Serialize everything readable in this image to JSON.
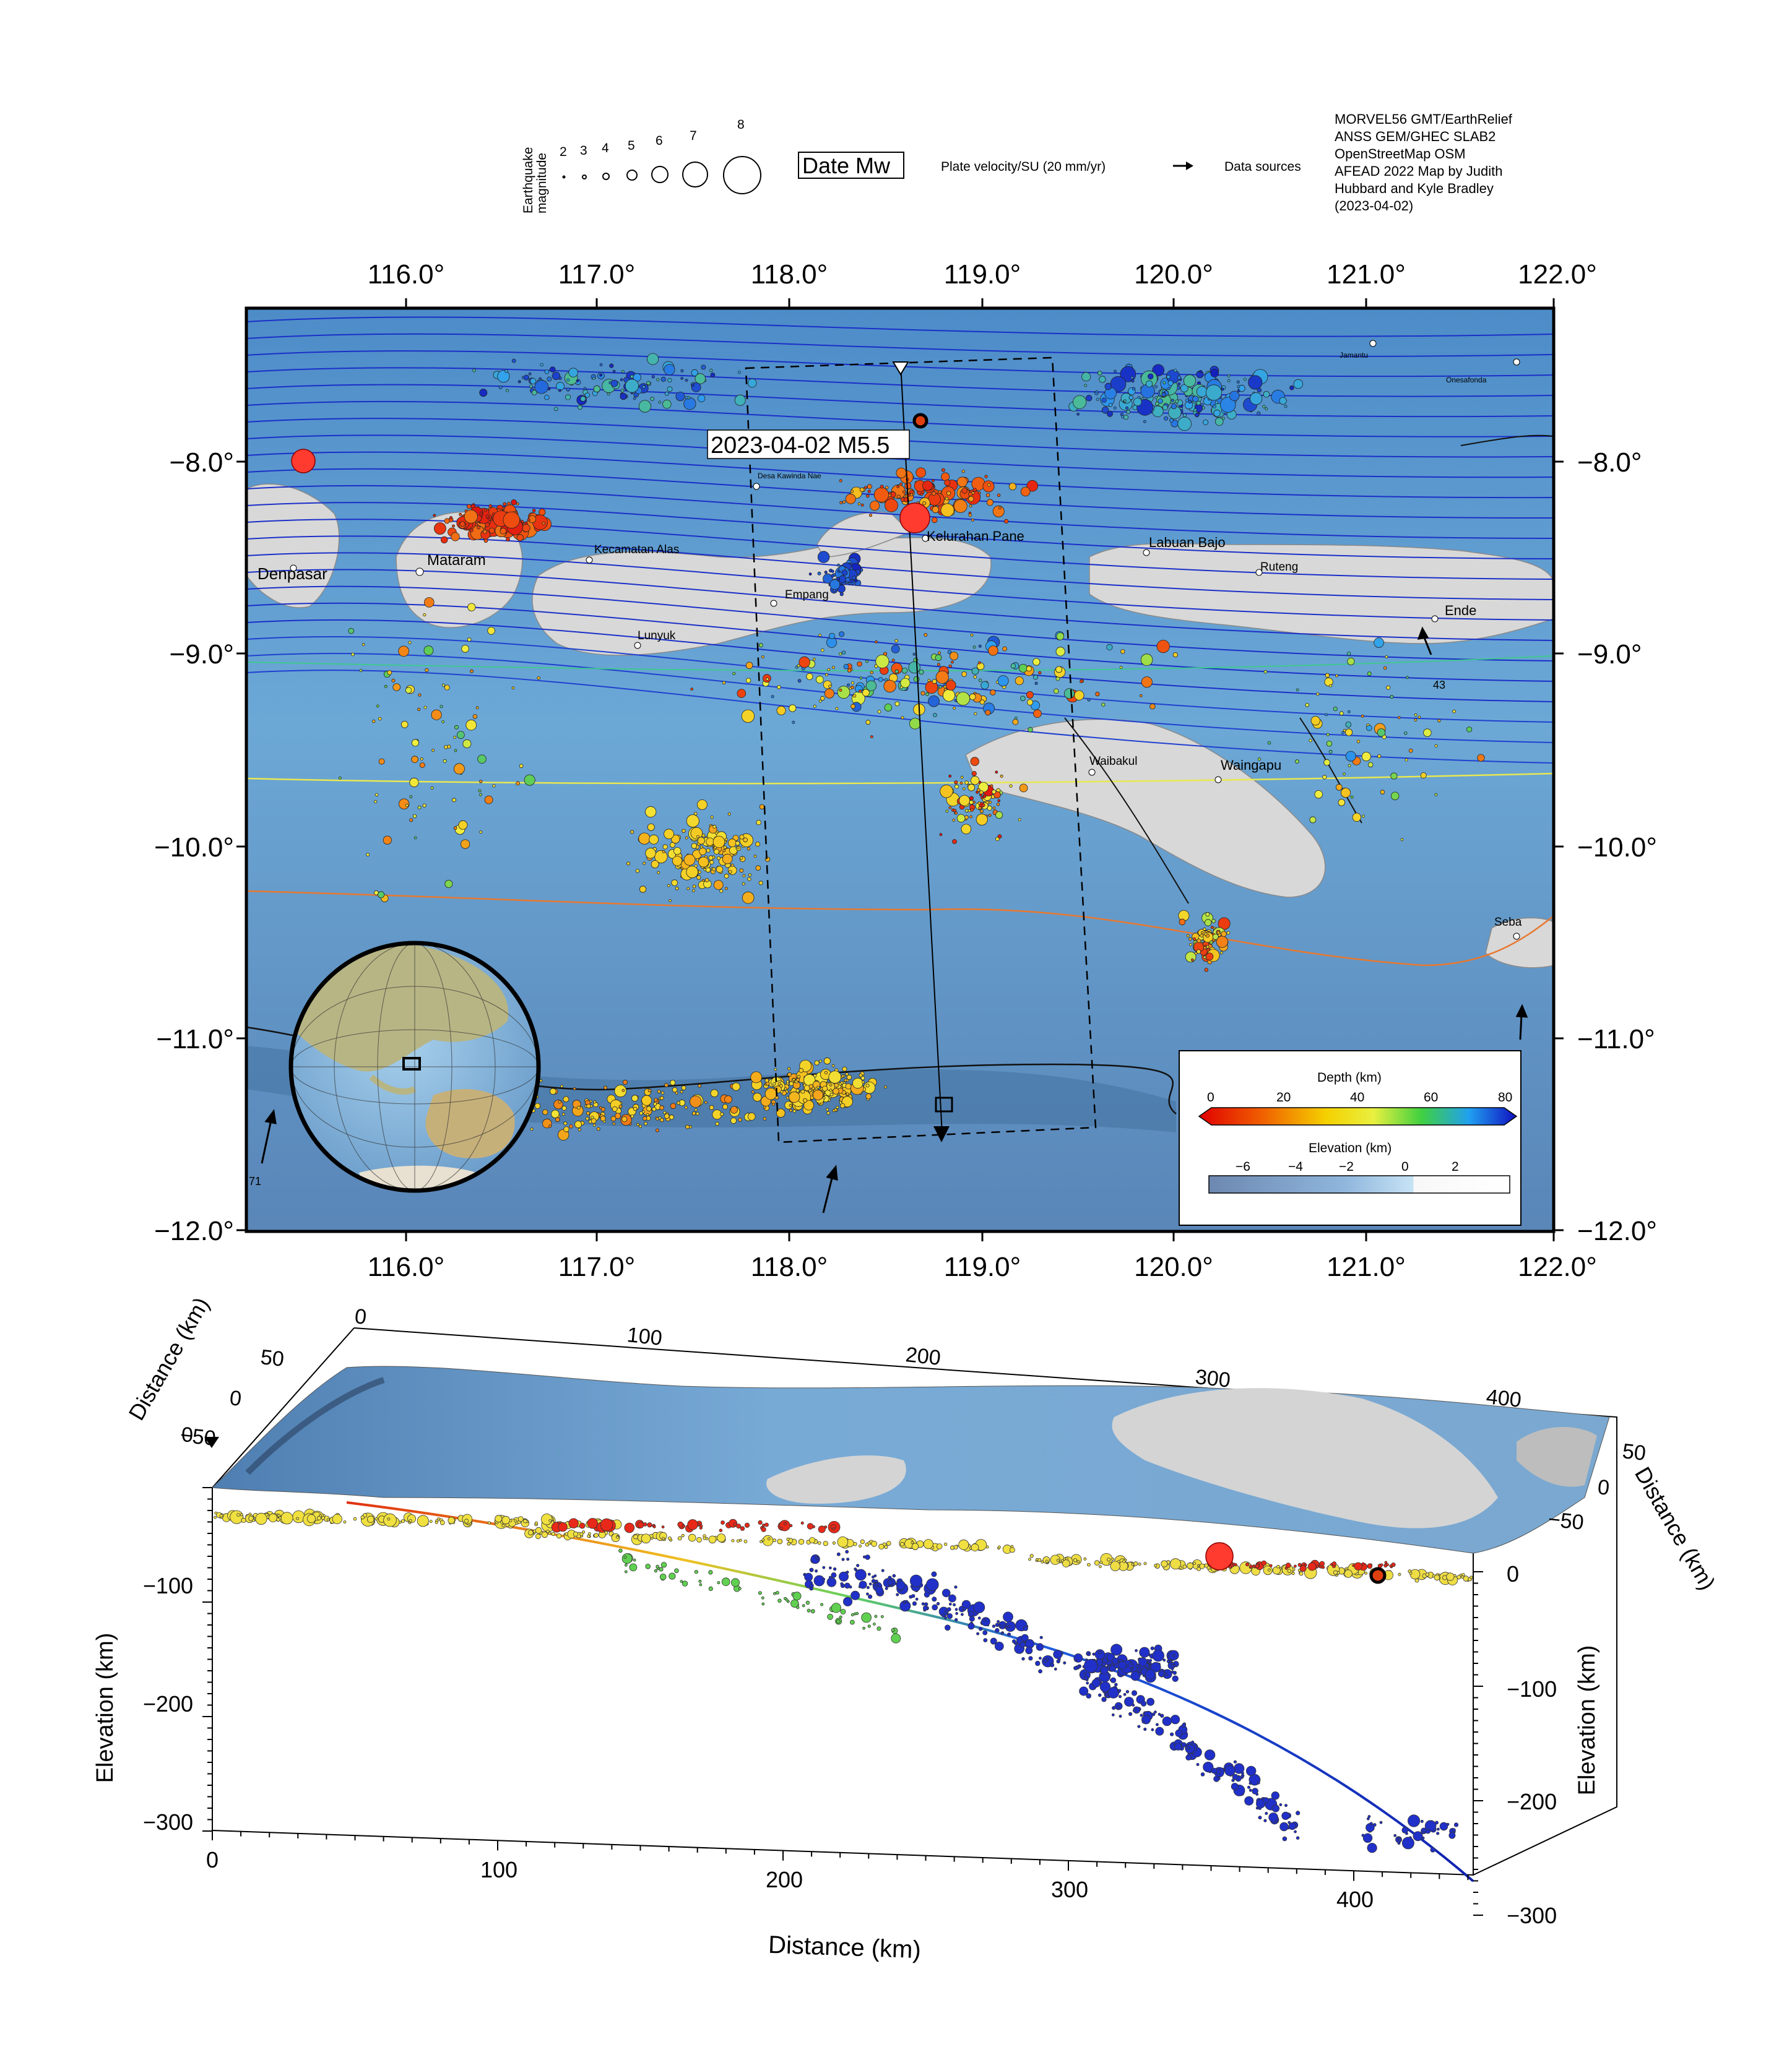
{
  "legend": {
    "magnitude_title": [
      "Earthquake",
      "magnitude"
    ],
    "magnitudes": [
      "2",
      "3",
      "4",
      "5",
      "6",
      "7",
      "8"
    ],
    "date_box": "Date Mw",
    "plate_velocity": "Plate velocity/SU (20 mm/yr)",
    "data_sources_label": "Data sources",
    "sources": [
      "MORVEL56 GMT/EarthRelief",
      "ANSS GEM/GHEC SLAB2",
      "OpenStreetMap OSM",
      "AFEAD 2022 Map by Judith",
      "Hubbard and Kyle Bradley",
      "(2023-04-02)"
    ]
  },
  "map": {
    "lon_ticks": [
      "116.0°",
      "117.0°",
      "118.0°",
      "119.0°",
      "120.0°",
      "121.0°",
      "122.0°"
    ],
    "lat_ticks": [
      "−8.0°",
      "−9.0°",
      "−10.0°",
      "−11.0°",
      "−12.0°"
    ],
    "event_label": "2023-04-02 M5.5",
    "cities": [
      "Denpasar",
      "Mataram",
      "Kecamatan Alas",
      "Lunyuk",
      "Empang",
      "Kelurahan Pane",
      "Labuan Bajo",
      "Ruteng",
      "Ende",
      "Waibakul",
      "Waingapu",
      "Seba",
      "Desa Kawinda Nae",
      "Jamantu",
      "Onesafonda"
    ],
    "velocity_labels": [
      "43",
      "71"
    ],
    "colors": {
      "ocean": "#5f9ccc",
      "land": "#d9d9d9",
      "trench": "#1a1a1a",
      "slab_deep": "#1428b4",
      "slab_shallow": "#e8601c"
    }
  },
  "depth_scale": {
    "title": "Depth (km)",
    "ticks": [
      "0",
      "20",
      "40",
      "60",
      "80"
    ],
    "colors": [
      "#e00000",
      "#f06000",
      "#f5d000",
      "#f0f040",
      "#40d040",
      "#20a0f0",
      "#1010c0"
    ]
  },
  "elevation_scale": {
    "title": "Elevation (km)",
    "ticks": [
      "−6",
      "−4",
      "−2",
      "0",
      "2"
    ]
  },
  "section": {
    "top_distance_ticks": [
      "0",
      "100",
      "200",
      "300",
      "400"
    ],
    "side_distance_ticks_left": [
      "50",
      "0",
      "−50"
    ],
    "side_distance_ticks_right": [
      "50",
      "0",
      "−50"
    ],
    "side_label": "Distance (km)",
    "left_elev_ticks": [
      "−100",
      "−200",
      "−300"
    ],
    "left_zero": "0",
    "right_elev_ticks": [
      "0",
      "−100",
      "−200",
      "−300"
    ],
    "bottom_distance_ticks": [
      "0",
      "100",
      "200",
      "300",
      "400"
    ],
    "xlabel": "Distance (km)",
    "ylabel": "Elevation (km)"
  }
}
